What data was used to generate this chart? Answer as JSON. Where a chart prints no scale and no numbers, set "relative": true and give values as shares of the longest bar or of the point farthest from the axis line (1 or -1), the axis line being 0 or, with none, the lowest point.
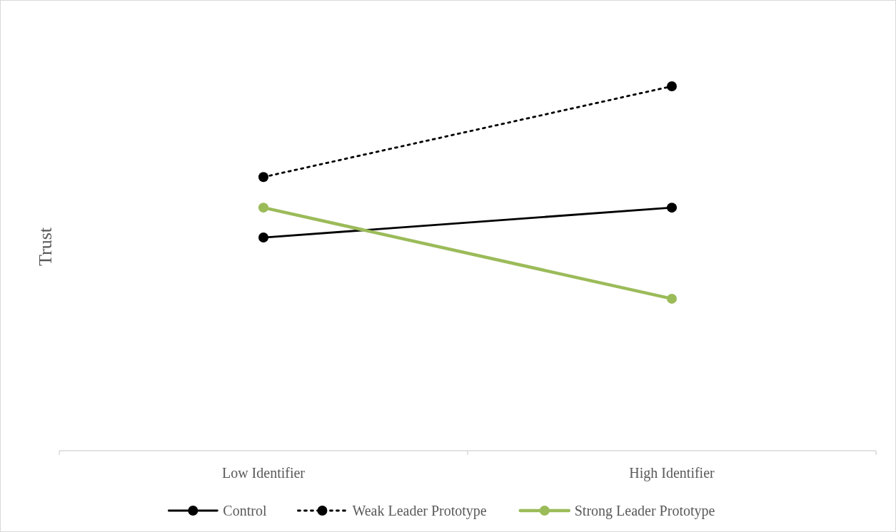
{
  "chart_data": {
    "type": "line",
    "ylabel": "Trust",
    "relative": true,
    "categories": [
      "Low Identifier",
      "High Identifier"
    ],
    "marker": "circle",
    "legend": "bottom",
    "series": [
      {
        "name": "Control",
        "color": "#000000",
        "line_style": "solid",
        "values": [
          0.585,
          0.667
        ]
      },
      {
        "name": "Weak Leader Prototype",
        "color": "#000000",
        "line_style": "dotted",
        "values": [
          0.751,
          1
        ]
      },
      {
        "name": "Strong Leader Prototype",
        "color": "#9bbb59",
        "line_style": "solid",
        "values": [
          0.667,
          0.417
        ]
      }
    ]
  }
}
